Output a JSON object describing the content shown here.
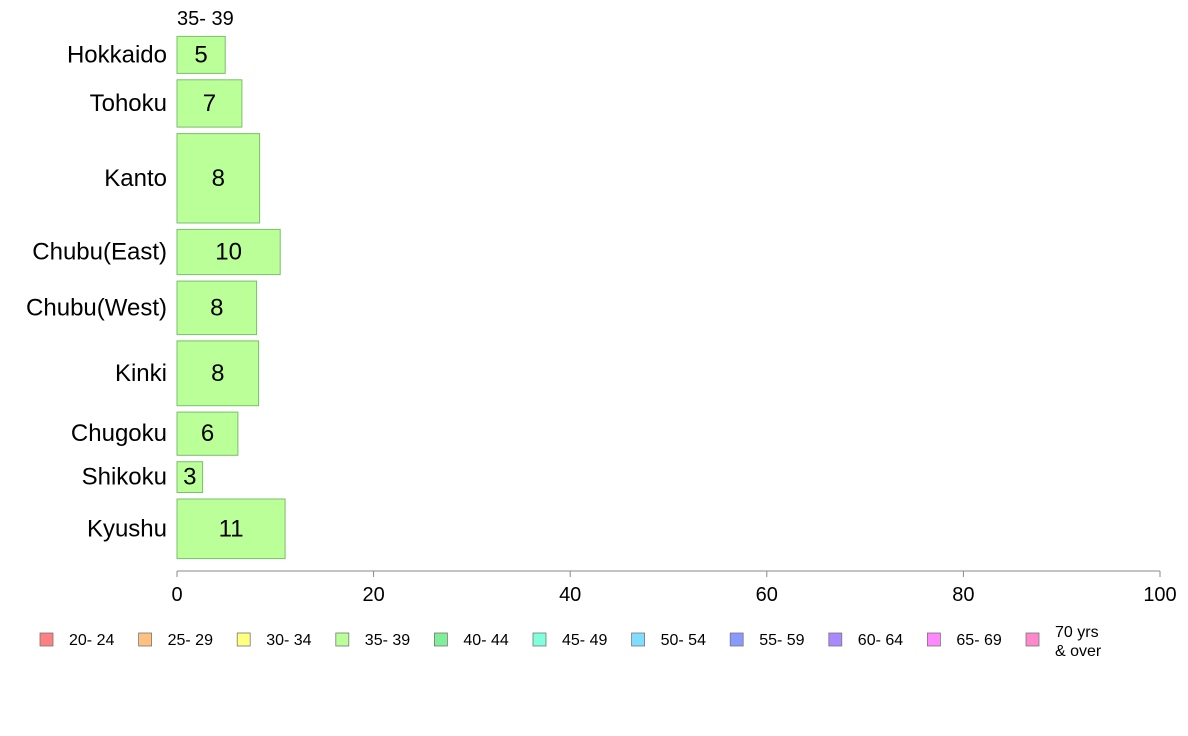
{
  "chart_data": {
    "type": "bar",
    "orientation": "horizontal",
    "stacked": true,
    "column_header": "35- 39",
    "categories": [
      "Hokkaido",
      "Tohoku",
      "Kanto",
      "Chubu(East)",
      "Chubu(West)",
      "Kinki",
      "Chugoku",
      "Shikoku",
      "Kyushu"
    ],
    "bar_thickness_share": [
      0.036,
      0.046,
      0.087,
      0.044,
      0.052,
      0.063,
      0.042,
      0.03,
      0.058
    ],
    "series": [
      {
        "name": "35- 39",
        "color": "#bbff99",
        "values": [
          4.9,
          6.6,
          8.4,
          10.5,
          8.1,
          8.3,
          6.2,
          2.6,
          11.0
        ],
        "labels": [
          "5",
          "7",
          "8",
          "10",
          "8",
          "8",
          "6",
          "3",
          "11"
        ]
      }
    ],
    "xlim": [
      0,
      100
    ],
    "xticks": [
      "0",
      "20",
      "40",
      "60",
      "80",
      "100"
    ],
    "grid": false,
    "legend_position": "bottom",
    "legend": [
      {
        "label": "20- 24",
        "color": "#ff8080"
      },
      {
        "label": "25- 29",
        "color": "#ffc080"
      },
      {
        "label": "30- 34",
        "color": "#ffff80"
      },
      {
        "label": "35- 39",
        "color": "#bbff99"
      },
      {
        "label": "40- 44",
        "color": "#80ee99"
      },
      {
        "label": "45- 49",
        "color": "#80ffdd"
      },
      {
        "label": "50- 54",
        "color": "#80ddff"
      },
      {
        "label": "55- 59",
        "color": "#8899ff"
      },
      {
        "label": "60- 64",
        "color": "#aa88ff"
      },
      {
        "label": "65- 69",
        "color": "#ff88ff"
      },
      {
        "label": "70 yrs\n& over",
        "color": "#ff88cc"
      }
    ]
  }
}
